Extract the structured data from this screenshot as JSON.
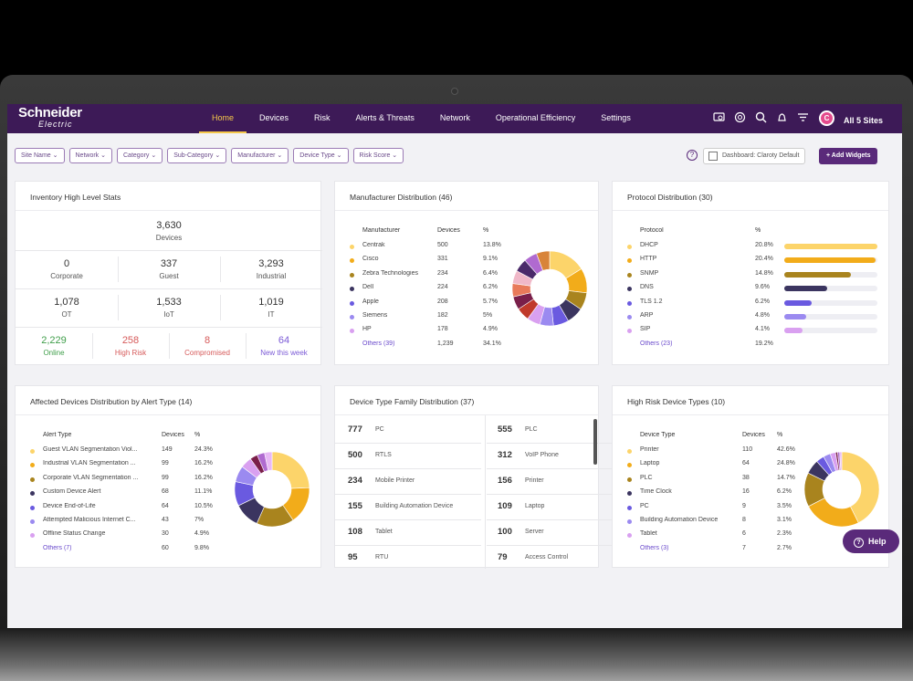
{
  "brand": {
    "line1": "Schneider",
    "line2": "Electric"
  },
  "nav": [
    "Home",
    "Devices",
    "Risk",
    "Alerts & Threats",
    "Network",
    "Operational Efficiency",
    "Settings"
  ],
  "site": {
    "avatar": "C",
    "label": "All 5 Sites"
  },
  "filters": [
    "Site Name",
    "Network",
    "Category",
    "Sub-Category",
    "Manufacturer",
    "Device Type",
    "Risk Score"
  ],
  "dashboard": {
    "label": "Dashboard: Claroty Default",
    "add_label": "+ Add Widgets",
    "help_icon": "?"
  },
  "inventory": {
    "title": "Inventory High Level Stats",
    "total": {
      "value": "3,630",
      "label": "Devices"
    },
    "row1": [
      {
        "value": "0",
        "label": "Corporate"
      },
      {
        "value": "337",
        "label": "Guest"
      },
      {
        "value": "3,293",
        "label": "Industrial"
      }
    ],
    "row2": [
      {
        "value": "1,078",
        "label": "OT"
      },
      {
        "value": "1,533",
        "label": "IoT"
      },
      {
        "value": "1,019",
        "label": "IT"
      }
    ],
    "row3": [
      {
        "value": "2,229",
        "label": "Online",
        "color": "#3f9e4a"
      },
      {
        "value": "258",
        "label": "High Risk",
        "color": "#d65a5a"
      },
      {
        "value": "8",
        "label": "Compromised",
        "color": "#d65a5a"
      },
      {
        "value": "64",
        "label": "New this week",
        "color": "#7b5ad6"
      }
    ]
  },
  "manufacturer": {
    "title": "Manufacturer Distribution (46)",
    "headers": [
      "Manufacturer",
      "Devices",
      "%"
    ],
    "rows": [
      {
        "name": "Centrak",
        "devices": "500",
        "pct": "13.8%",
        "color": "#fcd46a"
      },
      {
        "name": "Cisco",
        "devices": "331",
        "pct": "9.1%",
        "color": "#f2ac1a"
      },
      {
        "name": "Zebra Technologies",
        "devices": "234",
        "pct": "6.4%",
        "color": "#a9841e"
      },
      {
        "name": "Dell",
        "devices": "224",
        "pct": "6.2%",
        "color": "#3b3560"
      },
      {
        "name": "Apple",
        "devices": "208",
        "pct": "5.7%",
        "color": "#6a5ae0"
      },
      {
        "name": "Siemens",
        "devices": "182",
        "pct": "5%",
        "color": "#9b8af0"
      },
      {
        "name": "HP",
        "devices": "178",
        "pct": "4.9%",
        "color": "#d9a0f0"
      }
    ],
    "others": {
      "name": "Others (39)",
      "devices": "1,239",
      "pct": "34.1%"
    },
    "chart_colors": [
      "#fcd46a",
      "#f2ac1a",
      "#a9841e",
      "#3b3560",
      "#6a5ae0",
      "#9b8af0",
      "#d9a0f0",
      "#c0392b",
      "#7a1f4a",
      "#e87a5a",
      "#f0b8c8",
      "#4a2a6a",
      "#b06ad0",
      "#d8843a"
    ]
  },
  "protocol": {
    "title": "Protocol Distribution (30)",
    "headers": [
      "Protocol",
      "%"
    ],
    "rows": [
      {
        "name": "DHCP",
        "pct": "20.8%",
        "value": 20.8,
        "color": "#fcd46a"
      },
      {
        "name": "HTTP",
        "pct": "20.4%",
        "value": 20.4,
        "color": "#f2ac1a"
      },
      {
        "name": "SNMP",
        "pct": "14.8%",
        "value": 14.8,
        "color": "#a9841e"
      },
      {
        "name": "DNS",
        "pct": "9.6%",
        "value": 9.6,
        "color": "#3b3560"
      },
      {
        "name": "TLS 1.2",
        "pct": "6.2%",
        "value": 6.2,
        "color": "#6a5ae0"
      },
      {
        "name": "ARP",
        "pct": "4.8%",
        "value": 4.8,
        "color": "#9b8af0"
      },
      {
        "name": "SIP",
        "pct": "4.1%",
        "value": 4.1,
        "color": "#d9a0f0"
      }
    ],
    "others": {
      "name": "Others (23)",
      "pct": "19.2%"
    }
  },
  "alerts": {
    "title": "Affected Devices Distribution by Alert Type (14)",
    "headers": [
      "Alert Type",
      "Devices",
      "%"
    ],
    "rows": [
      {
        "name": "Guest VLAN Segmentation Viol...",
        "devices": "149",
        "pct": "24.3%",
        "color": "#fcd46a"
      },
      {
        "name": "Industrial VLAN Segmentation ...",
        "devices": "99",
        "pct": "16.2%",
        "color": "#f2ac1a"
      },
      {
        "name": "Corporate VLAN Segmentation ...",
        "devices": "99",
        "pct": "16.2%",
        "color": "#a9841e"
      },
      {
        "name": "Custom Device Alert",
        "devices": "68",
        "pct": "11.1%",
        "color": "#3b3560"
      },
      {
        "name": "Device End-of-Life",
        "devices": "64",
        "pct": "10.5%",
        "color": "#6a5ae0"
      },
      {
        "name": "Attempted Malicious Internet C...",
        "devices": "43",
        "pct": "7%",
        "color": "#9b8af0"
      },
      {
        "name": "Offline Status Change",
        "devices": "30",
        "pct": "4.9%",
        "color": "#d9a0f0"
      }
    ],
    "others": {
      "name": "Others (7)",
      "devices": "60",
      "pct": "9.8%"
    },
    "chart_extra_colors": [
      "#7a1f4a",
      "#b06ad0",
      "#e8b8f5"
    ]
  },
  "family": {
    "title": "Device Type Family Distribution (37)",
    "left": [
      {
        "n": "777",
        "t": "PC"
      },
      {
        "n": "500",
        "t": "RTLS"
      },
      {
        "n": "234",
        "t": "Mobile Printer"
      },
      {
        "n": "155",
        "t": "Building Automation Device"
      },
      {
        "n": "108",
        "t": "Tablet"
      },
      {
        "n": "95",
        "t": "RTU"
      }
    ],
    "right": [
      {
        "n": "555",
        "t": "PLC"
      },
      {
        "n": "312",
        "t": "VoIP Phone"
      },
      {
        "n": "156",
        "t": "Printer"
      },
      {
        "n": "109",
        "t": "Laptop"
      },
      {
        "n": "100",
        "t": "Server"
      },
      {
        "n": "79",
        "t": "Access Control"
      }
    ]
  },
  "highrisk": {
    "title": "High Risk Device Types (10)",
    "headers": [
      "Device Type",
      "Devices",
      "%"
    ],
    "rows": [
      {
        "name": "Printer",
        "devices": "110",
        "pct": "42.6%",
        "color": "#fcd46a"
      },
      {
        "name": "Laptop",
        "devices": "64",
        "pct": "24.8%",
        "color": "#f2ac1a"
      },
      {
        "name": "PLC",
        "devices": "38",
        "pct": "14.7%",
        "color": "#a9841e"
      },
      {
        "name": "Time Clock",
        "devices": "16",
        "pct": "6.2%",
        "color": "#3b3560"
      },
      {
        "name": "PC",
        "devices": "9",
        "pct": "3.5%",
        "color": "#6a5ae0"
      },
      {
        "name": "Building Automation Device",
        "devices": "8",
        "pct": "3.1%",
        "color": "#9b8af0"
      },
      {
        "name": "Tablet",
        "devices": "6",
        "pct": "2.3%",
        "color": "#d9a0f0"
      }
    ],
    "others": {
      "name": "Others (3)",
      "devices": "7",
      "pct": "2.7%"
    },
    "chart_extra_colors": [
      "#7a1f4a",
      "#b06ad0",
      "#e8b8f5"
    ]
  },
  "help": {
    "label": "Help",
    "icon": "?"
  }
}
